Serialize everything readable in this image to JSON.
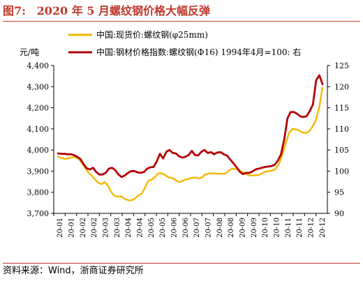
{
  "figure": {
    "number": "图7:",
    "title": "2020 年 5 月螺纹钢价格大幅反弹",
    "source": "资料来源：Wind，浙商证券研究所"
  },
  "chart_data": {
    "type": "line",
    "y_left_unit": "元/吨",
    "y_left_ticks": [
      "3,700",
      "3,800",
      "3,900",
      "4,000",
      "4,100",
      "4,200",
      "4,300",
      "4,400"
    ],
    "y_left_range": [
      3700,
      4400
    ],
    "y_right_ticks": [
      "90",
      "95",
      "100",
      "105",
      "110",
      "115",
      "120",
      "125"
    ],
    "y_right_range": [
      90,
      125
    ],
    "x_ticks": [
      "20-01",
      "20-01",
      "20-02",
      "20-02",
      "20-03",
      "20-03",
      "20-04",
      "20-04",
      "20-05",
      "20-05",
      "20-06",
      "20-06",
      "20-07",
      "20-07",
      "20-08",
      "20-08",
      "20-09",
      "20-09",
      "20-10",
      "20-10",
      "20-11",
      "20-11",
      "20-12",
      "20-12"
    ],
    "legend_placement": "top",
    "grid": false,
    "series": [
      {
        "name": "中国:现货价:螺纹钢(φ25mm)",
        "axis": "left",
        "color": "#f5b800",
        "values": [
          3970,
          3962,
          3958,
          3960,
          3965,
          3967,
          3960,
          3942,
          3918,
          3895,
          3880,
          3862,
          3845,
          3838,
          3848,
          3830,
          3798,
          3782,
          3780,
          3780,
          3768,
          3762,
          3762,
          3770,
          3785,
          3793,
          3822,
          3855,
          3860,
          3872,
          3890,
          3890,
          3882,
          3870,
          3868,
          3860,
          3848,
          3852,
          3860,
          3863,
          3868,
          3870,
          3865,
          3870,
          3885,
          3888,
          3890,
          3888,
          3888,
          3887,
          3888,
          3902,
          3912,
          3910,
          3905,
          3897,
          3888,
          3880,
          3880,
          3880,
          3882,
          3890,
          3898,
          3900,
          3902,
          3910,
          3935,
          3975,
          4030,
          4080,
          4100,
          4098,
          4092,
          4083,
          4080,
          4088,
          4110,
          4140,
          4200,
          4295
        ]
      },
      {
        "name": "中国:钢材价格指数:螺纹钢(Φ16) 1994年4月=100:  右",
        "axis": "right",
        "color": "#b40000",
        "values": [
          104.2,
          104.1,
          104.1,
          104.0,
          104.0,
          103.8,
          103.4,
          102.9,
          101.7,
          100.7,
          100.4,
          100.8,
          99.8,
          99.2,
          99.2,
          99.6,
          100.6,
          100.8,
          100.2,
          99.2,
          98.6,
          99.0,
          99.6,
          100.0,
          100.0,
          99.7,
          99.6,
          99.8,
          100.6,
          100.9,
          101.0,
          102.3,
          104.1,
          103.0,
          104.6,
          105.0,
          104.3,
          104.2,
          103.5,
          103.2,
          103.4,
          103.8,
          104.8,
          103.8,
          103.7,
          104.6,
          105.0,
          104.3,
          104.5,
          104.0,
          104.4,
          104.5,
          104.0,
          103.7,
          102.8,
          101.9,
          101.0,
          99.9,
          99.3,
          99.6,
          99.6,
          99.9,
          100.4,
          100.6,
          100.8,
          101.0,
          101.1,
          101.2,
          101.5,
          102.5,
          104.0,
          107.5,
          112.5,
          114.0,
          114.0,
          113.6,
          113.0,
          112.8,
          113.0,
          114.2,
          115.8,
          121.5,
          122.7,
          120.6
        ]
      }
    ]
  }
}
